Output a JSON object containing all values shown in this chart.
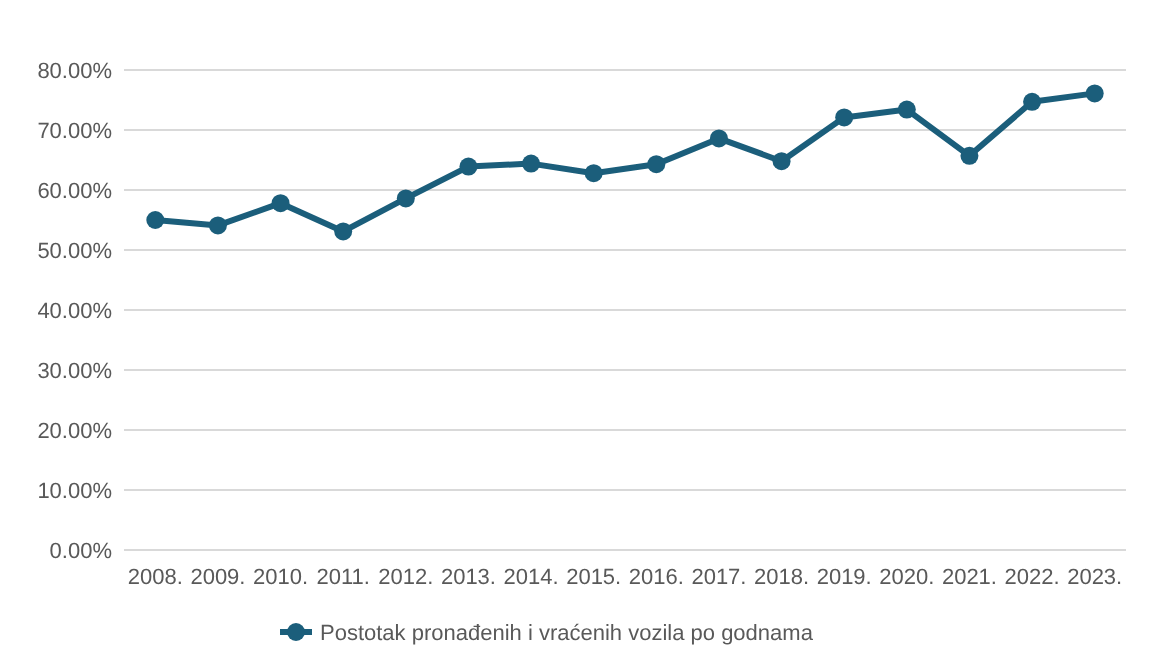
{
  "chart_data": {
    "type": "line",
    "categories": [
      "2008.",
      "2009.",
      "2010.",
      "2011.",
      "2012.",
      "2013.",
      "2014.",
      "2015.",
      "2016.",
      "2017.",
      "2018.",
      "2019.",
      "2020.",
      "2021.",
      "2022.",
      "2023."
    ],
    "series": [
      {
        "name": "Postotak pronađenih i vraćenih vozila po godnama",
        "color": "#1b5e7b",
        "values": [
          55.0,
          54.1,
          57.8,
          53.1,
          58.6,
          63.9,
          64.4,
          62.8,
          64.3,
          68.6,
          64.8,
          72.1,
          73.4,
          65.7,
          74.7,
          76.1
        ]
      }
    ],
    "ylim": [
      0,
      80
    ],
    "yticks": [
      {
        "value": 0,
        "label": "0.00%"
      },
      {
        "value": 10,
        "label": "10.00%"
      },
      {
        "value": 20,
        "label": "20.00%"
      },
      {
        "value": 30,
        "label": "30.00%"
      },
      {
        "value": 40,
        "label": "40.00%"
      },
      {
        "value": 50,
        "label": "50.00%"
      },
      {
        "value": 60,
        "label": "60.00%"
      },
      {
        "value": 70,
        "label": "70.00%"
      },
      {
        "value": 80,
        "label": "80.00%"
      }
    ],
    "grid": "y",
    "legend": "bottom",
    "marker": "circle",
    "line_style": "solid"
  }
}
